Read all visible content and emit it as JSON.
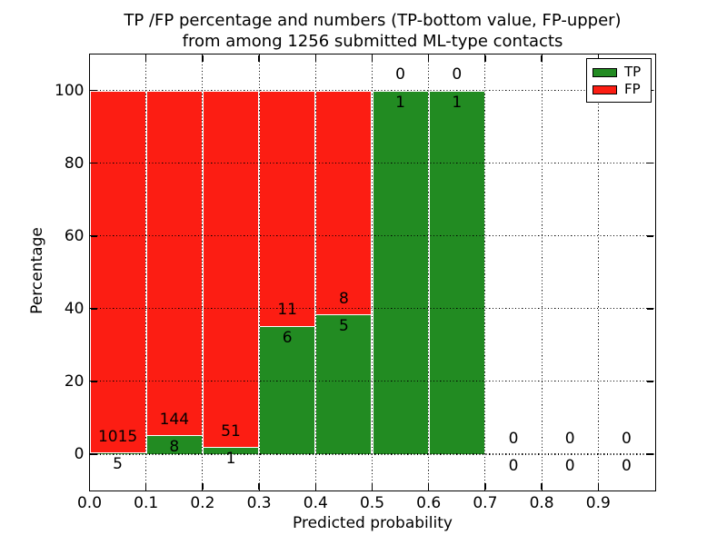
{
  "title": {
    "line1": "TP /FP percentage and numbers (TP-bottom value, FP-upper)",
    "line2": "from among 1256 submitted ML-type contacts"
  },
  "axes": {
    "xlabel": "Predicted probability",
    "ylabel": "Percentage",
    "x_tick_labels": [
      "0.0",
      "0.1",
      "0.2",
      "0.3",
      "0.4",
      "0.5",
      "0.6",
      "0.7",
      "0.8",
      "0.9"
    ],
    "x_tick_values": [
      0.0,
      0.1,
      0.2,
      0.3,
      0.4,
      0.5,
      0.6,
      0.7,
      0.8,
      0.9
    ],
    "y_tick_labels": [
      "0",
      "20",
      "40",
      "60",
      "80",
      "100"
    ],
    "y_tick_values": [
      0,
      20,
      40,
      60,
      80,
      100
    ],
    "xlim": [
      0.0,
      1.0
    ],
    "ylim": [
      -10,
      110
    ],
    "grid": true,
    "grid_style": "dotted"
  },
  "legend": {
    "position": "upper right",
    "items": [
      {
        "label": "TP",
        "color": "#228b22"
      },
      {
        "label": "FP",
        "color": "#fc1d13"
      }
    ]
  },
  "colors": {
    "tp": "#228b22",
    "fp": "#fc1d13",
    "bar_edge": "#ffffff",
    "grid": "#000000",
    "text": "#000000",
    "background": "#ffffff"
  },
  "chart_data": {
    "type": "bar",
    "stacked": true,
    "normalized": "percent-of-bin-total",
    "total_submitted": 1256,
    "bin_edges": [
      0.0,
      0.1,
      0.2,
      0.3,
      0.4,
      0.5,
      0.6,
      0.7,
      0.8,
      0.9,
      1.0
    ],
    "series": [
      {
        "name": "TP",
        "color": "#228b22",
        "counts": [
          5,
          8,
          1,
          6,
          5,
          1,
          1,
          0,
          0,
          0
        ]
      },
      {
        "name": "FP",
        "color": "#fc1d13",
        "counts": [
          1015,
          144,
          51,
          11,
          8,
          0,
          0,
          0,
          0,
          0
        ]
      }
    ],
    "tp_percent_of_bin": [
      0.49,
      5.26,
      1.92,
      35.29,
      38.46,
      100,
      100,
      0,
      0,
      0
    ],
    "annotation_rule": "FP count printed above green segment top, TP count printed below green segment top, per bin",
    "title": "TP /FP percentage and numbers (TP-bottom value, FP-upper) from among 1256 submitted ML-type contacts",
    "xlabel": "Predicted probability",
    "ylabel": "Percentage"
  }
}
